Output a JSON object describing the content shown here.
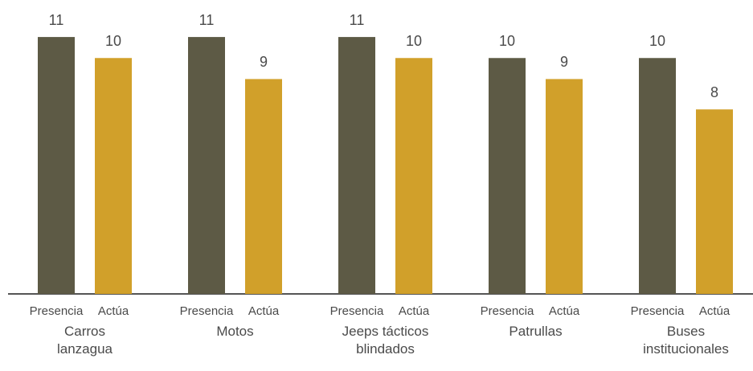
{
  "chart_data": {
    "type": "bar",
    "categories": [
      "Carros\nlanzagua",
      "Motos",
      "Jeeps tácticos\nblindados",
      "Patrullas",
      "Buses\ninstitucionales"
    ],
    "series": [
      {
        "name": "Presencia",
        "color": "#5d5a45",
        "values": [
          11.0,
          11.0,
          11.0,
          10.1,
          10.1
        ],
        "value_labels": [
          "11",
          "11",
          "11",
          "10",
          "10"
        ]
      },
      {
        "name": "Actúa",
        "color": "#d1a02a",
        "values": [
          10.1,
          9.2,
          10.1,
          9.2,
          7.9
        ],
        "value_labels": [
          "10",
          "9",
          "10",
          "9",
          "8"
        ]
      }
    ],
    "ylim": [
      0,
      12
    ]
  }
}
